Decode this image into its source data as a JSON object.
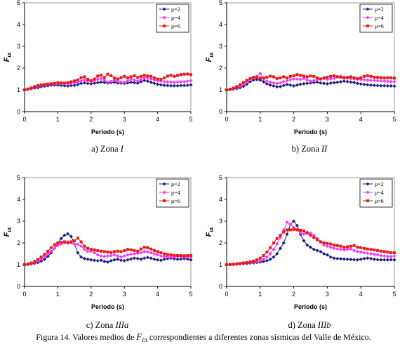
{
  "figure": {
    "caption_prefix": "Figura 14. Valores medios de ",
    "caption_symbol": "F",
    "caption_subscript": "IA",
    "caption_suffix": "  correspondientes a diferentes zonas sísmicas del Valle de México."
  },
  "series_styles": [
    {
      "color": "#1a1a80",
      "marker": "diamond"
    },
    {
      "color": "#ff33ff",
      "marker": "diamond"
    },
    {
      "color": "#e81818",
      "marker": "square"
    }
  ],
  "chart_data": [
    {
      "type": "line",
      "subtitle_prefix": "a) Zona ",
      "subtitle_zone": "I",
      "ylabel_main": "F",
      "ylabel_sub": "IA",
      "xlabel": "Periodo (s)",
      "xlim": [
        0,
        5
      ],
      "ylim": [
        0,
        5
      ],
      "xticks": [
        0,
        1,
        2,
        3,
        4,
        5
      ],
      "yticks": [
        0,
        1,
        2,
        3,
        4,
        5
      ],
      "grid": false,
      "legend": "top-right",
      "x": [
        0,
        0.1,
        0.2,
        0.3,
        0.4,
        0.5,
        0.6,
        0.7,
        0.8,
        0.9,
        1.0,
        1.1,
        1.2,
        1.3,
        1.4,
        1.5,
        1.6,
        1.7,
        1.8,
        1.9,
        2.0,
        2.1,
        2.2,
        2.3,
        2.4,
        2.5,
        2.6,
        2.7,
        2.8,
        2.9,
        3.0,
        3.1,
        3.2,
        3.3,
        3.4,
        3.5,
        3.6,
        3.7,
        3.8,
        3.9,
        4.0,
        4.1,
        4.2,
        4.3,
        4.4,
        4.5,
        4.6,
        4.7,
        4.8,
        4.9,
        5.0
      ],
      "series": [
        {
          "name": "μ=2",
          "values": [
            1.0,
            1.02,
            1.05,
            1.08,
            1.1,
            1.14,
            1.17,
            1.19,
            1.21,
            1.22,
            1.22,
            1.21,
            1.19,
            1.18,
            1.2,
            1.21,
            1.24,
            1.3,
            1.32,
            1.3,
            1.28,
            1.31,
            1.33,
            1.36,
            1.34,
            1.32,
            1.34,
            1.35,
            1.32,
            1.31,
            1.3,
            1.32,
            1.35,
            1.33,
            1.31,
            1.38,
            1.43,
            1.4,
            1.35,
            1.3,
            1.26,
            1.23,
            1.21,
            1.2,
            1.19,
            1.19,
            1.19,
            1.2,
            1.2,
            1.21,
            1.23
          ]
        },
        {
          "name": "μ=4",
          "values": [
            1.0,
            1.03,
            1.07,
            1.12,
            1.16,
            1.19,
            1.22,
            1.24,
            1.25,
            1.27,
            1.3,
            1.29,
            1.28,
            1.28,
            1.3,
            1.33,
            1.35,
            1.41,
            1.45,
            1.4,
            1.37,
            1.43,
            1.48,
            1.52,
            1.44,
            1.36,
            1.39,
            1.45,
            1.4,
            1.36,
            1.34,
            1.41,
            1.48,
            1.45,
            1.41,
            1.48,
            1.56,
            1.53,
            1.5,
            1.45,
            1.42,
            1.4,
            1.38,
            1.37,
            1.36,
            1.35,
            1.36,
            1.37,
            1.38,
            1.4,
            1.42
          ]
        },
        {
          "name": "μ=6",
          "values": [
            1.0,
            1.04,
            1.09,
            1.15,
            1.2,
            1.23,
            1.25,
            1.27,
            1.28,
            1.3,
            1.33,
            1.32,
            1.31,
            1.33,
            1.37,
            1.41,
            1.46,
            1.56,
            1.6,
            1.48,
            1.42,
            1.5,
            1.63,
            1.68,
            1.57,
            1.72,
            1.65,
            1.55,
            1.5,
            1.56,
            1.62,
            1.55,
            1.6,
            1.65,
            1.57,
            1.62,
            1.67,
            1.64,
            1.62,
            1.55,
            1.5,
            1.48,
            1.55,
            1.63,
            1.67,
            1.62,
            1.66,
            1.7,
            1.72,
            1.73,
            1.7
          ]
        }
      ]
    },
    {
      "type": "line",
      "subtitle_prefix": "b) Zona ",
      "subtitle_zone": "II",
      "ylabel_main": "F",
      "ylabel_sub": "IA",
      "xlabel": "Periodo (s)",
      "xlim": [
        0,
        5
      ],
      "ylim": [
        0,
        5
      ],
      "xticks": [
        0,
        1,
        2,
        3,
        4,
        5
      ],
      "yticks": [
        0,
        1,
        2,
        3,
        4,
        5
      ],
      "grid": false,
      "legend": "top-right",
      "x": [
        0,
        0.1,
        0.2,
        0.3,
        0.4,
        0.5,
        0.6,
        0.7,
        0.8,
        0.9,
        1.0,
        1.1,
        1.2,
        1.3,
        1.4,
        1.5,
        1.6,
        1.7,
        1.8,
        1.9,
        2.0,
        2.1,
        2.2,
        2.3,
        2.4,
        2.5,
        2.6,
        2.7,
        2.8,
        2.9,
        3.0,
        3.1,
        3.2,
        3.3,
        3.4,
        3.5,
        3.6,
        3.7,
        3.8,
        3.9,
        4.0,
        4.1,
        4.2,
        4.3,
        4.4,
        4.5,
        4.6,
        4.7,
        4.8,
        4.9,
        5.0
      ],
      "series": [
        {
          "name": "μ=2",
          "values": [
            1.0,
            1.01,
            1.03,
            1.06,
            1.1,
            1.16,
            1.26,
            1.38,
            1.45,
            1.47,
            1.45,
            1.38,
            1.28,
            1.22,
            1.18,
            1.14,
            1.15,
            1.2,
            1.25,
            1.22,
            1.18,
            1.22,
            1.26,
            1.28,
            1.3,
            1.32,
            1.34,
            1.36,
            1.32,
            1.3,
            1.28,
            1.31,
            1.33,
            1.35,
            1.37,
            1.4,
            1.38,
            1.36,
            1.34,
            1.3,
            1.27,
            1.25,
            1.23,
            1.22,
            1.21,
            1.2,
            1.19,
            1.19,
            1.18,
            1.18,
            1.17
          ]
        },
        {
          "name": "μ=4",
          "values": [
            1.0,
            1.02,
            1.05,
            1.1,
            1.17,
            1.27,
            1.38,
            1.48,
            1.55,
            1.62,
            1.75,
            1.52,
            1.4,
            1.35,
            1.32,
            1.3,
            1.32,
            1.38,
            1.42,
            1.47,
            1.5,
            1.49,
            1.48,
            1.52,
            1.45,
            1.4,
            1.43,
            1.47,
            1.5,
            1.52,
            1.48,
            1.5,
            1.53,
            1.6,
            1.62,
            1.58,
            1.55,
            1.52,
            1.5,
            1.48,
            1.47,
            1.46,
            1.45,
            1.44,
            1.43,
            1.42,
            1.41,
            1.4,
            1.39,
            1.38,
            1.38
          ]
        },
        {
          "name": "μ=6",
          "values": [
            1.0,
            1.03,
            1.08,
            1.15,
            1.24,
            1.34,
            1.44,
            1.52,
            1.58,
            1.57,
            1.54,
            1.55,
            1.58,
            1.63,
            1.6,
            1.52,
            1.55,
            1.6,
            1.55,
            1.62,
            1.65,
            1.7,
            1.67,
            1.63,
            1.6,
            1.64,
            1.62,
            1.55,
            1.5,
            1.55,
            1.58,
            1.62,
            1.65,
            1.6,
            1.58,
            1.55,
            1.57,
            1.6,
            1.56,
            1.52,
            1.55,
            1.62,
            1.65,
            1.62,
            1.58,
            1.57,
            1.56,
            1.55,
            1.56,
            1.55,
            1.54
          ]
        }
      ]
    },
    {
      "type": "line",
      "subtitle_prefix": "c) Zona ",
      "subtitle_zone": "IIIa",
      "ylabel_main": "F",
      "ylabel_sub": "IA",
      "xlabel": "Periodo (s)",
      "xlim": [
        0,
        5
      ],
      "ylim": [
        0,
        5
      ],
      "xticks": [
        0,
        1,
        2,
        3,
        4,
        5
      ],
      "yticks": [
        0,
        1,
        2,
        3,
        4,
        5
      ],
      "grid": false,
      "legend": "top-right",
      "x": [
        0,
        0.1,
        0.2,
        0.3,
        0.4,
        0.5,
        0.6,
        0.7,
        0.8,
        0.9,
        1.0,
        1.1,
        1.2,
        1.3,
        1.4,
        1.5,
        1.6,
        1.7,
        1.8,
        1.9,
        2.0,
        2.1,
        2.2,
        2.3,
        2.4,
        2.5,
        2.6,
        2.7,
        2.8,
        2.9,
        3.0,
        3.1,
        3.2,
        3.3,
        3.4,
        3.5,
        3.6,
        3.7,
        3.8,
        3.9,
        4.0,
        4.1,
        4.2,
        4.3,
        4.4,
        4.5,
        4.6,
        4.7,
        4.8,
        4.9,
        5.0
      ],
      "series": [
        {
          "name": "μ=2",
          "values": [
            1.0,
            1.01,
            1.03,
            1.06,
            1.1,
            1.16,
            1.25,
            1.38,
            1.55,
            1.75,
            2.0,
            2.2,
            2.35,
            2.42,
            2.3,
            1.95,
            1.55,
            1.35,
            1.28,
            1.25,
            1.22,
            1.2,
            1.18,
            1.2,
            1.15,
            1.12,
            1.18,
            1.22,
            1.25,
            1.2,
            1.18,
            1.22,
            1.26,
            1.3,
            1.28,
            1.25,
            1.3,
            1.33,
            1.3,
            1.25,
            1.22,
            1.2,
            1.25,
            1.28,
            1.3,
            1.27,
            1.25,
            1.26,
            1.28,
            1.26,
            1.22
          ]
        },
        {
          "name": "μ=4",
          "values": [
            1.0,
            1.02,
            1.05,
            1.1,
            1.17,
            1.26,
            1.37,
            1.5,
            1.62,
            1.75,
            1.88,
            1.95,
            2.0,
            2.05,
            2.0,
            1.95,
            1.93,
            1.85,
            1.7,
            1.6,
            1.62,
            1.55,
            1.45,
            1.4,
            1.38,
            1.4,
            1.42,
            1.45,
            1.4,
            1.36,
            1.4,
            1.45,
            1.48,
            1.5,
            1.52,
            1.55,
            1.6,
            1.58,
            1.55,
            1.5,
            1.45,
            1.4,
            1.38,
            1.36,
            1.35,
            1.36,
            1.37,
            1.38,
            1.36,
            1.35,
            1.35
          ]
        },
        {
          "name": "μ=6",
          "values": [
            1.0,
            1.03,
            1.08,
            1.15,
            1.24,
            1.35,
            1.48,
            1.62,
            1.78,
            1.92,
            2.0,
            2.02,
            2.05,
            2.0,
            2.05,
            2.1,
            2.22,
            2.05,
            1.85,
            1.75,
            1.7,
            1.68,
            1.65,
            1.62,
            1.6,
            1.58,
            1.56,
            1.6,
            1.62,
            1.6,
            1.65,
            1.7,
            1.68,
            1.65,
            1.62,
            1.72,
            1.8,
            1.78,
            1.72,
            1.65,
            1.6,
            1.55,
            1.5,
            1.47,
            1.45,
            1.43,
            1.42,
            1.42,
            1.41,
            1.42,
            1.42
          ]
        }
      ]
    },
    {
      "type": "line",
      "subtitle_prefix": "d) Zona ",
      "subtitle_zone": "IIIb",
      "ylabel_main": "F",
      "ylabel_sub": "IA",
      "xlabel": "Periodo (s)",
      "xlim": [
        0,
        5
      ],
      "ylim": [
        0,
        5
      ],
      "xticks": [
        0,
        1,
        2,
        3,
        4,
        5
      ],
      "yticks": [
        0,
        1,
        2,
        3,
        4,
        5
      ],
      "grid": false,
      "legend": "top-right",
      "x": [
        0,
        0.1,
        0.2,
        0.3,
        0.4,
        0.5,
        0.6,
        0.7,
        0.8,
        0.9,
        1.0,
        1.1,
        1.2,
        1.3,
        1.4,
        1.5,
        1.6,
        1.7,
        1.8,
        1.9,
        2.0,
        2.1,
        2.2,
        2.3,
        2.4,
        2.5,
        2.6,
        2.7,
        2.8,
        2.9,
        3.0,
        3.1,
        3.2,
        3.3,
        3.4,
        3.5,
        3.6,
        3.7,
        3.8,
        3.9,
        4.0,
        4.1,
        4.2,
        4.3,
        4.4,
        4.5,
        4.6,
        4.7,
        4.8,
        4.9,
        5.0
      ],
      "series": [
        {
          "name": "μ=2",
          "values": [
            1.0,
            1.0,
            1.01,
            1.02,
            1.03,
            1.04,
            1.05,
            1.07,
            1.08,
            1.1,
            1.12,
            1.15,
            1.18,
            1.25,
            1.35,
            1.5,
            1.75,
            2.0,
            2.4,
            2.85,
            3.0,
            2.8,
            2.4,
            2.1,
            1.9,
            1.8,
            1.7,
            1.65,
            1.6,
            1.5,
            1.45,
            1.35,
            1.3,
            1.28,
            1.27,
            1.26,
            1.25,
            1.24,
            1.23,
            1.22,
            1.25,
            1.28,
            1.3,
            1.28,
            1.25,
            1.23,
            1.22,
            1.22,
            1.22,
            1.23,
            1.22
          ]
        },
        {
          "name": "μ=4",
          "values": [
            1.0,
            1.01,
            1.02,
            1.03,
            1.04,
            1.06,
            1.08,
            1.1,
            1.12,
            1.15,
            1.18,
            1.25,
            1.35,
            1.5,
            1.7,
            1.95,
            2.25,
            2.6,
            2.95,
            2.85,
            2.7,
            2.6,
            2.45,
            2.4,
            2.5,
            2.45,
            2.35,
            2.2,
            2.05,
            1.9,
            1.85,
            1.8,
            1.75,
            1.72,
            1.7,
            1.68,
            1.7,
            1.72,
            1.65,
            1.6,
            1.58,
            1.55,
            1.52,
            1.5,
            1.47,
            1.45,
            1.42,
            1.4,
            1.38,
            1.38,
            1.4
          ]
        },
        {
          "name": "μ=6",
          "values": [
            1.0,
            1.01,
            1.02,
            1.04,
            1.06,
            1.08,
            1.1,
            1.13,
            1.17,
            1.22,
            1.3,
            1.42,
            1.58,
            1.78,
            2.0,
            2.2,
            2.35,
            2.5,
            2.6,
            2.6,
            2.62,
            2.6,
            2.58,
            2.55,
            2.45,
            2.35,
            2.25,
            2.15,
            2.05,
            2.0,
            1.98,
            1.95,
            1.9,
            1.88,
            1.85,
            1.8,
            1.82,
            1.85,
            1.88,
            1.8,
            1.78,
            1.75,
            1.72,
            1.7,
            1.68,
            1.65,
            1.62,
            1.6,
            1.58,
            1.55,
            1.55
          ]
        }
      ]
    }
  ]
}
